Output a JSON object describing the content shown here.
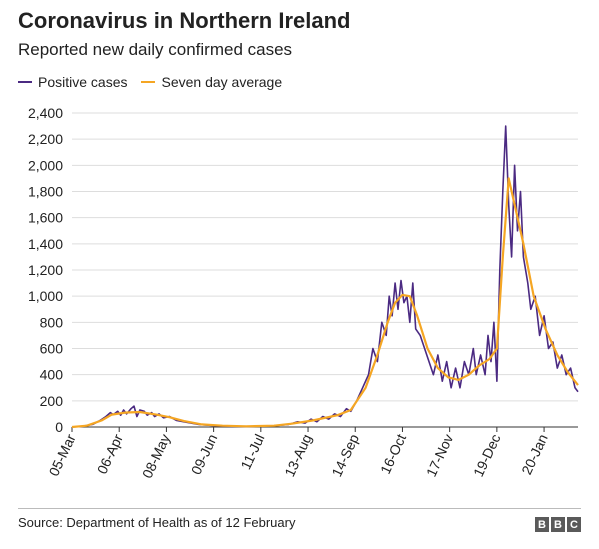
{
  "header": {
    "title": "Coronavirus in Northern Ireland",
    "subtitle": "Reported new daily confirmed cases"
  },
  "footer": {
    "source": "Source: Department of Health as of 12 February",
    "logo_letters": [
      "B",
      "B",
      "C"
    ]
  },
  "colors": {
    "positive": "#4b2a82",
    "average": "#f5a623",
    "grid": "#dddddd",
    "axis": "#333333"
  },
  "chart_data": {
    "type": "line",
    "x_start": "2020-03-05",
    "x_end": "2021-02-11",
    "x_tick_labels": [
      "05-Mar",
      "06-Apr",
      "08-May",
      "09-Jun",
      "11-Jul",
      "13-Aug",
      "14-Sep",
      "16-Oct",
      "17-Nov",
      "19-Dec",
      "20-Jan"
    ],
    "y_ticks": [
      0,
      200,
      400,
      600,
      800,
      1000,
      1200,
      1400,
      1600,
      1800,
      2000,
      2200,
      2400
    ],
    "y_tick_labels": [
      "0",
      "200",
      "400",
      "600",
      "800",
      "1,000",
      "1,200",
      "1,400",
      "1,600",
      "1,800",
      "2,000",
      "2,200",
      "2,400"
    ],
    "ylim": [
      0,
      2400
    ],
    "grid": true,
    "legend_position": "top-left",
    "series": [
      {
        "name": "Positive cases",
        "points": [
          [
            "2020-03-05",
            0
          ],
          [
            "2020-03-12",
            5
          ],
          [
            "2020-03-19",
            20
          ],
          [
            "2020-03-24",
            50
          ],
          [
            "2020-03-28",
            80
          ],
          [
            "2020-03-31",
            110
          ],
          [
            "2020-04-02",
            95
          ],
          [
            "2020-04-05",
            120
          ],
          [
            "2020-04-07",
            90
          ],
          [
            "2020-04-09",
            130
          ],
          [
            "2020-04-11",
            100
          ],
          [
            "2020-04-14",
            140
          ],
          [
            "2020-04-16",
            160
          ],
          [
            "2020-04-18",
            80
          ],
          [
            "2020-04-20",
            130
          ],
          [
            "2020-04-23",
            120
          ],
          [
            "2020-04-25",
            90
          ],
          [
            "2020-04-28",
            110
          ],
          [
            "2020-04-30",
            80
          ],
          [
            "2020-05-03",
            100
          ],
          [
            "2020-05-06",
            70
          ],
          [
            "2020-05-10",
            80
          ],
          [
            "2020-05-15",
            50
          ],
          [
            "2020-05-20",
            40
          ],
          [
            "2020-05-30",
            20
          ],
          [
            "2020-06-10",
            10
          ],
          [
            "2020-06-20",
            5
          ],
          [
            "2020-07-05",
            5
          ],
          [
            "2020-07-20",
            10
          ],
          [
            "2020-07-30",
            20
          ],
          [
            "2020-08-05",
            40
          ],
          [
            "2020-08-10",
            30
          ],
          [
            "2020-08-14",
            60
          ],
          [
            "2020-08-18",
            40
          ],
          [
            "2020-08-22",
            80
          ],
          [
            "2020-08-26",
            60
          ],
          [
            "2020-08-30",
            100
          ],
          [
            "2020-09-03",
            80
          ],
          [
            "2020-09-07",
            140
          ],
          [
            "2020-09-10",
            120
          ],
          [
            "2020-09-14",
            200
          ],
          [
            "2020-09-18",
            300
          ],
          [
            "2020-09-22",
            400
          ],
          [
            "2020-09-25",
            600
          ],
          [
            "2020-09-28",
            500
          ],
          [
            "2020-10-01",
            800
          ],
          [
            "2020-10-04",
            700
          ],
          [
            "2020-10-06",
            1000
          ],
          [
            "2020-10-08",
            850
          ],
          [
            "2020-10-10",
            1100
          ],
          [
            "2020-10-12",
            900
          ],
          [
            "2020-10-14",
            1120
          ],
          [
            "2020-10-16",
            950
          ],
          [
            "2020-10-18",
            1000
          ],
          [
            "2020-10-20",
            800
          ],
          [
            "2020-10-22",
            1100
          ],
          [
            "2020-10-24",
            750
          ],
          [
            "2020-10-27",
            700
          ],
          [
            "2020-10-30",
            600
          ],
          [
            "2020-11-02",
            500
          ],
          [
            "2020-11-05",
            400
          ],
          [
            "2020-11-08",
            550
          ],
          [
            "2020-11-11",
            350
          ],
          [
            "2020-11-14",
            500
          ],
          [
            "2020-11-17",
            300
          ],
          [
            "2020-11-20",
            450
          ],
          [
            "2020-11-23",
            300
          ],
          [
            "2020-11-26",
            500
          ],
          [
            "2020-11-29",
            400
          ],
          [
            "2020-12-02",
            600
          ],
          [
            "2020-12-04",
            400
          ],
          [
            "2020-12-07",
            550
          ],
          [
            "2020-12-10",
            400
          ],
          [
            "2020-12-12",
            700
          ],
          [
            "2020-12-14",
            500
          ],
          [
            "2020-12-16",
            800
          ],
          [
            "2020-12-18",
            350
          ],
          [
            "2020-12-20",
            1200
          ],
          [
            "2020-12-22",
            1800
          ],
          [
            "2020-12-24",
            2300
          ],
          [
            "2020-12-26",
            1700
          ],
          [
            "2020-12-28",
            1300
          ],
          [
            "2020-12-30",
            2000
          ],
          [
            "2021-01-01",
            1500
          ],
          [
            "2021-01-03",
            1800
          ],
          [
            "2021-01-05",
            1300
          ],
          [
            "2021-01-08",
            1100
          ],
          [
            "2021-01-10",
            900
          ],
          [
            "2021-01-13",
            1000
          ],
          [
            "2021-01-16",
            700
          ],
          [
            "2021-01-19",
            850
          ],
          [
            "2021-01-22",
            600
          ],
          [
            "2021-01-25",
            650
          ],
          [
            "2021-01-28",
            450
          ],
          [
            "2021-01-31",
            550
          ],
          [
            "2021-02-03",
            400
          ],
          [
            "2021-02-06",
            450
          ],
          [
            "2021-02-09",
            300
          ],
          [
            "2021-02-11",
            270
          ]
        ]
      },
      {
        "name": "Seven day average",
        "points": [
          [
            "2020-03-05",
            0
          ],
          [
            "2020-03-15",
            10
          ],
          [
            "2020-03-25",
            50
          ],
          [
            "2020-04-01",
            95
          ],
          [
            "2020-04-10",
            110
          ],
          [
            "2020-04-20",
            115
          ],
          [
            "2020-05-01",
            95
          ],
          [
            "2020-05-10",
            75
          ],
          [
            "2020-05-20",
            45
          ],
          [
            "2020-06-01",
            20
          ],
          [
            "2020-06-15",
            10
          ],
          [
            "2020-07-01",
            5
          ],
          [
            "2020-07-20",
            10
          ],
          [
            "2020-08-01",
            25
          ],
          [
            "2020-08-15",
            50
          ],
          [
            "2020-09-01",
            90
          ],
          [
            "2020-09-10",
            130
          ],
          [
            "2020-09-20",
            300
          ],
          [
            "2020-09-28",
            550
          ],
          [
            "2020-10-05",
            800
          ],
          [
            "2020-10-10",
            950
          ],
          [
            "2020-10-15",
            1010
          ],
          [
            "2020-10-20",
            1000
          ],
          [
            "2020-10-25",
            850
          ],
          [
            "2020-11-01",
            600
          ],
          [
            "2020-11-08",
            450
          ],
          [
            "2020-11-15",
            380
          ],
          [
            "2020-11-22",
            360
          ],
          [
            "2020-11-29",
            400
          ],
          [
            "2020-12-06",
            470
          ],
          [
            "2020-12-13",
            520
          ],
          [
            "2020-12-18",
            600
          ],
          [
            "2020-12-22",
            1300
          ],
          [
            "2020-12-26",
            1900
          ],
          [
            "2020-12-30",
            1700
          ],
          [
            "2021-01-05",
            1400
          ],
          [
            "2021-01-12",
            1000
          ],
          [
            "2021-01-20",
            750
          ],
          [
            "2021-01-28",
            550
          ],
          [
            "2021-02-04",
            420
          ],
          [
            "2021-02-11",
            320
          ]
        ]
      }
    ]
  }
}
